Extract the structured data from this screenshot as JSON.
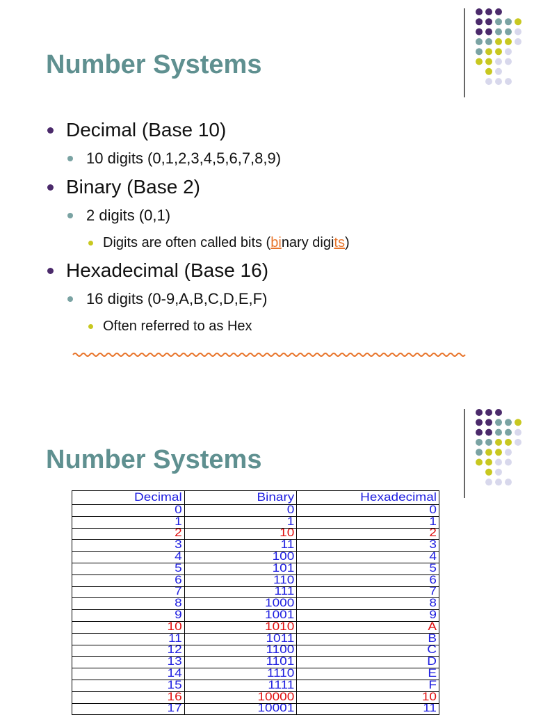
{
  "slides": [
    {
      "title": "Number Systems",
      "bullets": [
        {
          "text": "Decimal (Base 10)",
          "sub": [
            {
              "text": "10 digits (0,1,2,3,4,5,6,7,8,9)"
            }
          ]
        },
        {
          "text": "Binary (Base 2)",
          "sub": [
            {
              "text": "2 digits (0,1)",
              "sub": [
                {
                  "segments": [
                    {
                      "text": "Digits are often called bits ("
                    },
                    {
                      "text": "bi",
                      "color": "#e8742a"
                    },
                    {
                      "text": "nary digi"
                    },
                    {
                      "text": "ts",
                      "color": "#e8742a"
                    },
                    {
                      "text": ")"
                    }
                  ]
                }
              ]
            }
          ]
        },
        {
          "text": "Hexadecimal (Base 16)",
          "sub": [
            {
              "text": "16 digits (0-9,A,B,C,D,E,F)",
              "sub": [
                {
                  "text": "Often referred to as Hex"
                }
              ]
            }
          ]
        }
      ]
    },
    {
      "title": "Number Systems",
      "table": {
        "header": [
          "Decimal",
          "Binary",
          "Hexadecimal"
        ],
        "color": "#1f1fe0",
        "rows": [
          {
            "cells": [
              "0",
              "0",
              "0"
            ]
          },
          {
            "cells": [
              "1",
              "1",
              "1"
            ]
          },
          {
            "cells": [
              "2",
              "10",
              "2"
            ],
            "color": "#e01010"
          },
          {
            "cells": [
              "3",
              "11",
              "3"
            ]
          },
          {
            "cells": [
              "4",
              "100",
              "4"
            ]
          },
          {
            "cells": [
              "5",
              "101",
              "5"
            ]
          },
          {
            "cells": [
              "6",
              "110",
              "6"
            ]
          },
          {
            "cells": [
              "7",
              "111",
              "7"
            ]
          },
          {
            "cells": [
              "8",
              "1000",
              "8"
            ]
          },
          {
            "cells": [
              "9",
              "1001",
              "9"
            ]
          },
          {
            "cells": [
              "10",
              "1010",
              "A"
            ],
            "color": "#e01010"
          },
          {
            "cells": [
              "11",
              "1011",
              "B"
            ]
          },
          {
            "cells": [
              "12",
              "1100",
              "C"
            ]
          },
          {
            "cells": [
              "13",
              "1101",
              "D"
            ]
          },
          {
            "cells": [
              "14",
              "1110",
              "E"
            ]
          },
          {
            "cells": [
              "15",
              "1111",
              "F"
            ]
          },
          {
            "cells": [
              "16",
              "10000",
              "10"
            ],
            "color": "#e01010"
          },
          {
            "cells": [
              "17",
              "10001",
              "11"
            ]
          }
        ]
      }
    }
  ]
}
